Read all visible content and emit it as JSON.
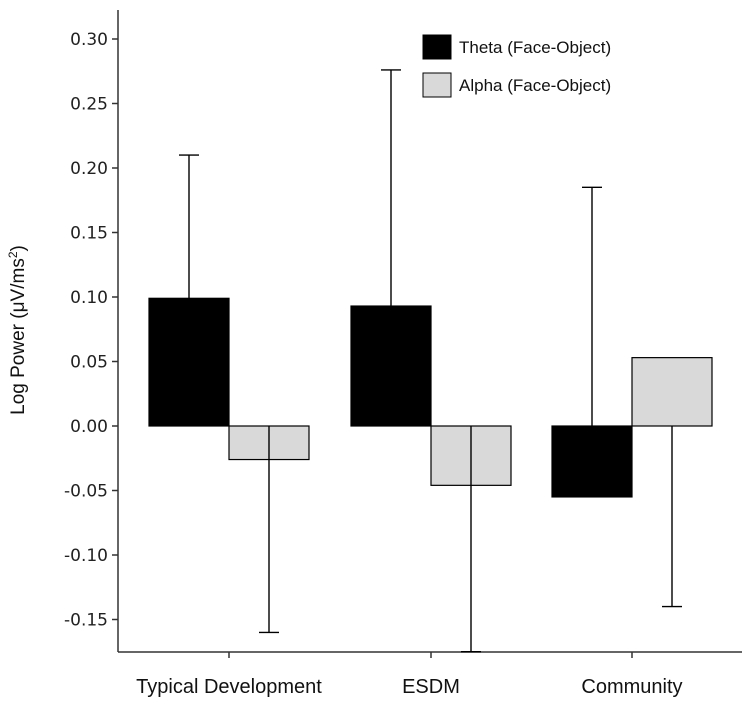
{
  "chart_data": {
    "type": "bar",
    "title": "",
    "xlabel": "",
    "ylabel_main": "Log Power (μV/ms",
    "ylabel_sup": "2",
    "ylabel_close": ")",
    "categories": [
      "Typical Development",
      "ESDM",
      "Community"
    ],
    "series": [
      {
        "name": "Theta (Face-Object)",
        "color": "#000000",
        "values": [
          0.099,
          0.093,
          -0.055
        ],
        "error_bar": [
          0.21,
          0.276,
          0.185
        ],
        "error_direction": [
          1,
          1,
          1
        ]
      },
      {
        "name": "Alpha (Face-Object)",
        "color": "#d9d9d9",
        "values": [
          -0.026,
          -0.046,
          0.053
        ],
        "error_bar": [
          -0.16,
          -0.175,
          -0.14
        ],
        "error_direction": [
          -1,
          -1,
          -1
        ]
      }
    ],
    "ylim": [
      -0.175,
      0.32
    ],
    "yticks": [
      "0.30",
      "0.25",
      "0.20",
      "0.15",
      "0.10",
      "0.05",
      "0.00",
      "-0.05",
      "-0.10",
      "-0.15"
    ],
    "ytick_values": [
      0.3,
      0.25,
      0.2,
      0.15,
      0.1,
      0.05,
      0.0,
      -0.05,
      -0.1,
      -0.15
    ],
    "legend_position": "top-right",
    "grid": false
  }
}
